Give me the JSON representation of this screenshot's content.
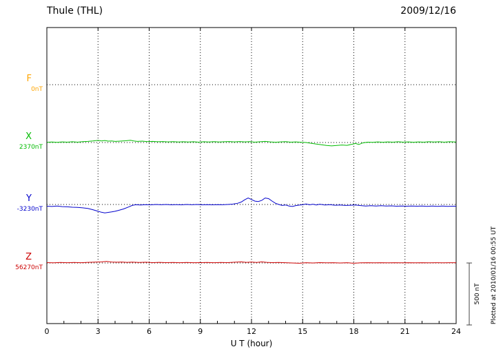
{
  "header": {
    "title": "Thule (THL)",
    "date": "2009/12/16"
  },
  "chart_data": {
    "type": "line",
    "title": "Thule (THL)",
    "subtitle": "2009/12/16",
    "xlabel": "U T (hour)",
    "ylabel": "",
    "x_range": [
      0,
      24
    ],
    "x_ticks": [
      0,
      3,
      6,
      9,
      12,
      15,
      18,
      21,
      24
    ],
    "grid": "dotted",
    "grid_color": "#000000",
    "scale_bar_nT": 500,
    "scale_bar_label": "500 nT",
    "plotted_note": "Plotted at 2010/01/16 00:55 UT",
    "series": [
      {
        "name": "F",
        "baseline_label": "0nT",
        "color": "#FFA500",
        "points": []
      },
      {
        "name": "X",
        "baseline_label": "2370nT",
        "color": "#00BB00",
        "points": [
          [
            0,
            2
          ],
          [
            0.3,
            4
          ],
          [
            0.6,
            1
          ],
          [
            0.9,
            5
          ],
          [
            1.2,
            3
          ],
          [
            1.5,
            6
          ],
          [
            1.8,
            3
          ],
          [
            2.1,
            7
          ],
          [
            2.4,
            9
          ],
          [
            2.7,
            12
          ],
          [
            3.0,
            17
          ],
          [
            3.2,
            13
          ],
          [
            3.4,
            16
          ],
          [
            3.6,
            11
          ],
          [
            3.8,
            13
          ],
          [
            4.0,
            9
          ],
          [
            4.3,
            11
          ],
          [
            4.6,
            14
          ],
          [
            4.9,
            18
          ],
          [
            5.1,
            13
          ],
          [
            5.3,
            9
          ],
          [
            5.6,
            11
          ],
          [
            5.9,
            7
          ],
          [
            6.2,
            9
          ],
          [
            6.5,
            6
          ],
          [
            6.8,
            8
          ],
          [
            7.1,
            5
          ],
          [
            7.4,
            7
          ],
          [
            7.7,
            4
          ],
          [
            8.0,
            6
          ],
          [
            8.3,
            4
          ],
          [
            8.6,
            6
          ],
          [
            8.9,
            3
          ],
          [
            9.2,
            6
          ],
          [
            9.5,
            4
          ],
          [
            9.8,
            7
          ],
          [
            10.1,
            4
          ],
          [
            10.4,
            6
          ],
          [
            10.7,
            8
          ],
          [
            11.0,
            5
          ],
          [
            11.3,
            8
          ],
          [
            11.6,
            5
          ],
          [
            11.9,
            7
          ],
          [
            12.2,
            3
          ],
          [
            12.5,
            6
          ],
          [
            12.8,
            9
          ],
          [
            13.1,
            5
          ],
          [
            13.4,
            2
          ],
          [
            13.7,
            5
          ],
          [
            14.0,
            7
          ],
          [
            14.3,
            3
          ],
          [
            14.6,
            5
          ],
          [
            14.9,
            2
          ],
          [
            15.2,
            0
          ],
          [
            15.5,
            -6
          ],
          [
            15.8,
            -12
          ],
          [
            16.1,
            -18
          ],
          [
            16.4,
            -24
          ],
          [
            16.7,
            -27
          ],
          [
            17.0,
            -24
          ],
          [
            17.3,
            -20
          ],
          [
            17.6,
            -23
          ],
          [
            17.9,
            -14
          ],
          [
            18.1,
            -8
          ],
          [
            18.3,
            -16
          ],
          [
            18.5,
            -4
          ],
          [
            18.8,
            3
          ],
          [
            19.1,
            1
          ],
          [
            19.4,
            5
          ],
          [
            19.7,
            2
          ],
          [
            20.0,
            5
          ],
          [
            20.3,
            3
          ],
          [
            20.6,
            6
          ],
          [
            20.9,
            3
          ],
          [
            21.2,
            5
          ],
          [
            21.5,
            2
          ],
          [
            21.8,
            5
          ],
          [
            22.1,
            3
          ],
          [
            22.4,
            6
          ],
          [
            22.7,
            4
          ],
          [
            23.0,
            6
          ],
          [
            23.3,
            3
          ],
          [
            23.6,
            6
          ],
          [
            24,
            4
          ]
        ]
      },
      {
        "name": "Y",
        "baseline_label": "-3230nT",
        "color": "#0000CC",
        "points": [
          [
            0,
            -14
          ],
          [
            0.3,
            -16
          ],
          [
            0.6,
            -13
          ],
          [
            0.9,
            -17
          ],
          [
            1.2,
            -19
          ],
          [
            1.5,
            -22
          ],
          [
            1.8,
            -24
          ],
          [
            2.1,
            -27
          ],
          [
            2.4,
            -32
          ],
          [
            2.7,
            -42
          ],
          [
            3.0,
            -55
          ],
          [
            3.2,
            -63
          ],
          [
            3.4,
            -68
          ],
          [
            3.6,
            -64
          ],
          [
            3.8,
            -60
          ],
          [
            4.0,
            -55
          ],
          [
            4.2,
            -48
          ],
          [
            4.5,
            -36
          ],
          [
            4.8,
            -20
          ],
          [
            5.0,
            -8
          ],
          [
            5.2,
            -2
          ],
          [
            5.5,
            -4
          ],
          [
            5.8,
            -1
          ],
          [
            6.1,
            -3
          ],
          [
            6.4,
            0
          ],
          [
            6.7,
            -2
          ],
          [
            7.0,
            0
          ],
          [
            7.3,
            -3
          ],
          [
            7.6,
            -1
          ],
          [
            7.9,
            -3
          ],
          [
            8.2,
            0
          ],
          [
            8.5,
            -2
          ],
          [
            8.8,
            0
          ],
          [
            9.1,
            -3
          ],
          [
            9.4,
            -1
          ],
          [
            9.7,
            -3
          ],
          [
            10.0,
            -1
          ],
          [
            10.3,
            -2
          ],
          [
            10.6,
            0
          ],
          [
            10.9,
            3
          ],
          [
            11.2,
            10
          ],
          [
            11.4,
            20
          ],
          [
            11.6,
            38
          ],
          [
            11.8,
            52
          ],
          [
            12.0,
            40
          ],
          [
            12.2,
            27
          ],
          [
            12.4,
            24
          ],
          [
            12.6,
            33
          ],
          [
            12.8,
            52
          ],
          [
            13.0,
            47
          ],
          [
            13.2,
            28
          ],
          [
            13.4,
            10
          ],
          [
            13.6,
            0
          ],
          [
            13.8,
            -8
          ],
          [
            14.0,
            -4
          ],
          [
            14.2,
            -12
          ],
          [
            14.4,
            -16
          ],
          [
            14.6,
            -9
          ],
          [
            14.8,
            -5
          ],
          [
            15.0,
            -2
          ],
          [
            15.2,
            4
          ],
          [
            15.4,
            -3
          ],
          [
            15.6,
            2
          ],
          [
            15.8,
            -4
          ],
          [
            16.0,
            2
          ],
          [
            16.3,
            -4
          ],
          [
            16.6,
            -1
          ],
          [
            16.9,
            -6
          ],
          [
            17.2,
            -4
          ],
          [
            17.5,
            -8
          ],
          [
            17.8,
            -6
          ],
          [
            18.1,
            -4
          ],
          [
            18.4,
            -9
          ],
          [
            18.7,
            -12
          ],
          [
            19.0,
            -10
          ],
          [
            19.3,
            -13
          ],
          [
            19.6,
            -10
          ],
          [
            19.9,
            -13
          ],
          [
            20.2,
            -11
          ],
          [
            20.5,
            -14
          ],
          [
            20.8,
            -12
          ],
          [
            21.1,
            -14
          ],
          [
            21.4,
            -12
          ],
          [
            21.7,
            -14
          ],
          [
            22.0,
            -13
          ],
          [
            22.3,
            -15
          ],
          [
            22.6,
            -13
          ],
          [
            22.9,
            -15
          ],
          [
            23.2,
            -13
          ],
          [
            23.5,
            -15
          ],
          [
            23.8,
            -14
          ],
          [
            24,
            -14
          ]
        ]
      },
      {
        "name": "Z",
        "baseline_label": "56270nT",
        "color": "#CC0000",
        "points": [
          [
            0,
            3
          ],
          [
            0.4,
            1
          ],
          [
            0.8,
            4
          ],
          [
            1.2,
            2
          ],
          [
            1.6,
            4
          ],
          [
            2.0,
            2
          ],
          [
            2.4,
            5
          ],
          [
            2.8,
            7
          ],
          [
            3.2,
            9
          ],
          [
            3.5,
            12
          ],
          [
            3.8,
            8
          ],
          [
            4.1,
            6
          ],
          [
            4.4,
            8
          ],
          [
            4.7,
            5
          ],
          [
            5.0,
            7
          ],
          [
            5.4,
            4
          ],
          [
            5.8,
            6
          ],
          [
            6.2,
            3
          ],
          [
            6.6,
            5
          ],
          [
            7.0,
            3
          ],
          [
            7.4,
            4
          ],
          [
            7.8,
            2
          ],
          [
            8.2,
            4
          ],
          [
            8.6,
            2
          ],
          [
            9.0,
            3
          ],
          [
            9.4,
            4
          ],
          [
            9.8,
            2
          ],
          [
            10.2,
            4
          ],
          [
            10.6,
            3
          ],
          [
            11.0,
            6
          ],
          [
            11.4,
            9
          ],
          [
            11.7,
            5
          ],
          [
            12.0,
            8
          ],
          [
            12.3,
            4
          ],
          [
            12.6,
            9
          ],
          [
            12.9,
            5
          ],
          [
            13.2,
            3
          ],
          [
            13.6,
            4
          ],
          [
            14.0,
            2
          ],
          [
            14.4,
            0
          ],
          [
            14.8,
            -2
          ],
          [
            15.2,
            2
          ],
          [
            15.6,
            0
          ],
          [
            16.0,
            3
          ],
          [
            16.4,
            1
          ],
          [
            16.8,
            2
          ],
          [
            17.2,
            0
          ],
          [
            17.6,
            2
          ],
          [
            18.0,
            -2
          ],
          [
            18.4,
            1
          ],
          [
            18.8,
            2
          ],
          [
            19.2,
            1
          ],
          [
            19.6,
            2
          ],
          [
            20.0,
            1
          ],
          [
            20.4,
            2
          ],
          [
            20.8,
            1
          ],
          [
            21.2,
            2
          ],
          [
            21.6,
            1
          ],
          [
            22.0,
            2
          ],
          [
            22.4,
            1
          ],
          [
            22.8,
            2
          ],
          [
            23.2,
            1
          ],
          [
            23.6,
            2
          ],
          [
            24,
            2
          ]
        ]
      }
    ]
  }
}
